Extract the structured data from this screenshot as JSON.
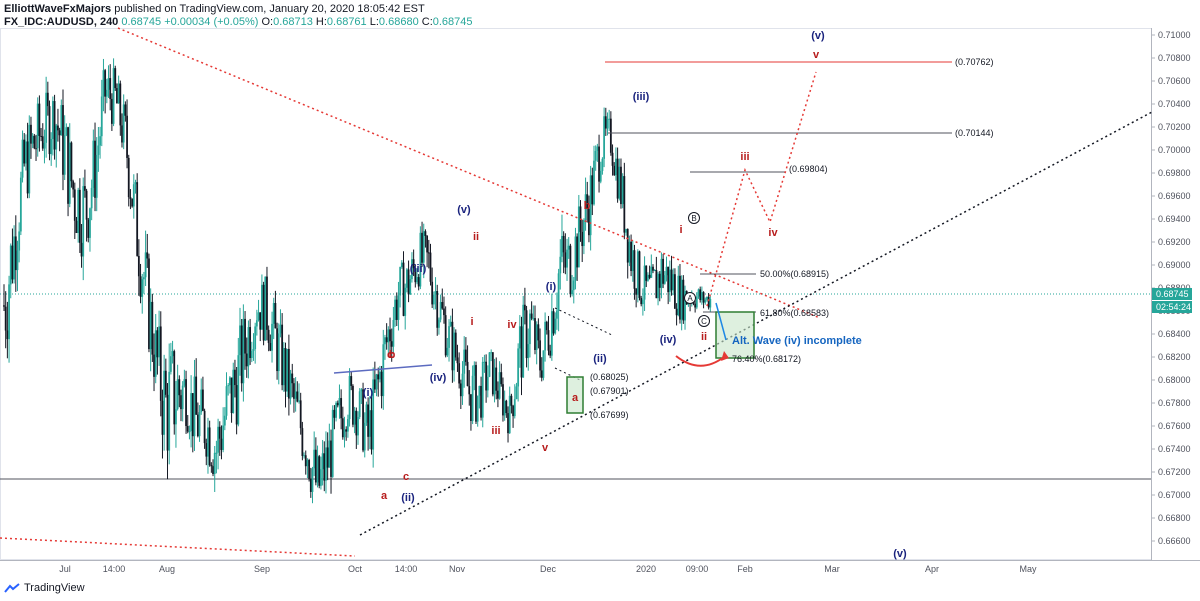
{
  "header": {
    "author": "ElliottWaveFxMajors",
    "published_text": "published on TradingView.com, January 20, 2020 18:05:42 EST",
    "symbol": "FX_IDC:AUDUSD, 240",
    "last": "0.68745",
    "change": "+0.00034 (+0.05%)",
    "o_label": "O:",
    "o_val": "0.68713",
    "h_label": "H:",
    "h_val": "0.68761",
    "l_label": "L:",
    "l_val": "0.68680",
    "c_label": "C:",
    "c_val": "0.68745"
  },
  "footer": {
    "brand": "TradingView"
  },
  "colors": {
    "up": "#26a69a",
    "down": "#131722",
    "wave_blue": "#1a237e",
    "wave_red": "#b71c1c",
    "trend_red": "#e53935",
    "box_green": "#2e7d32"
  },
  "chart_data": {
    "type": "candlestick",
    "title": "",
    "xlabel": "",
    "ylabel": "",
    "ylim": [
      0.665,
      0.711
    ],
    "y_ticks": [
      "0.71000",
      "0.70800",
      "0.70600",
      "0.70400",
      "0.70200",
      "0.70000",
      "0.69800",
      "0.69600",
      "0.69400",
      "0.69200",
      "0.69000",
      "0.68800",
      "0.68600",
      "0.68400",
      "0.68200",
      "0.68000",
      "0.67800",
      "0.67600",
      "0.67400",
      "0.67200",
      "0.67000",
      "0.66800",
      "0.66600"
    ],
    "x_ticks": [
      "Jul",
      "14:00",
      "Aug",
      "Sep",
      "Oct",
      "14:00",
      "Nov",
      "Dec",
      "2020",
      "09:00",
      "Feb",
      "Mar",
      "Apr",
      "May"
    ],
    "price_badge": "0.68745",
    "countdown_badge": "02:54:24",
    "price_path": [
      [
        0.68,
        0.693
      ],
      [
        0.688,
        0.696
      ],
      [
        0.695,
        0.702
      ],
      [
        0.697,
        0.704
      ],
      [
        0.699,
        0.705
      ],
      [
        0.7,
        0.706
      ],
      [
        0.696,
        0.704
      ],
      [
        0.692,
        0.7
      ],
      [
        0.69,
        0.699
      ],
      [
        0.695,
        0.702
      ],
      [
        0.702,
        0.708
      ],
      [
        0.702,
        0.707
      ],
      [
        0.698,
        0.704
      ],
      [
        0.69,
        0.698
      ],
      [
        0.684,
        0.692
      ],
      [
        0.678,
        0.686
      ],
      [
        0.672,
        0.683
      ],
      [
        0.674,
        0.684
      ],
      [
        0.676,
        0.682
      ],
      [
        0.673,
        0.68
      ],
      [
        0.673,
        0.679
      ],
      [
        0.67,
        0.678
      ],
      [
        0.674,
        0.681
      ],
      [
        0.676,
        0.684
      ],
      [
        0.68,
        0.687
      ],
      [
        0.684,
        0.689
      ],
      [
        0.683,
        0.689
      ],
      [
        0.68,
        0.686
      ],
      [
        0.677,
        0.683
      ],
      [
        0.674,
        0.68
      ],
      [
        0.671,
        0.677
      ],
      [
        0.667,
        0.674
      ],
      [
        0.67,
        0.676
      ],
      [
        0.673,
        0.679
      ],
      [
        0.676,
        0.681
      ],
      [
        0.675,
        0.68
      ],
      [
        0.672,
        0.678
      ],
      [
        0.676,
        0.683
      ],
      [
        0.681,
        0.687
      ],
      [
        0.685,
        0.69
      ],
      [
        0.686,
        0.691
      ],
      [
        0.688,
        0.693
      ],
      [
        0.687,
        0.693
      ],
      [
        0.684,
        0.689
      ],
      [
        0.681,
        0.686
      ],
      [
        0.679,
        0.684
      ],
      [
        0.676,
        0.682
      ],
      [
        0.676,
        0.681
      ],
      [
        0.679,
        0.683
      ],
      [
        0.677,
        0.681
      ],
      [
        0.675,
        0.679
      ],
      [
        0.679,
        0.686
      ],
      [
        0.682,
        0.688
      ],
      [
        0.679,
        0.684
      ],
      [
        0.682,
        0.688
      ],
      [
        0.686,
        0.694
      ],
      [
        0.687,
        0.693
      ],
      [
        0.69,
        0.696
      ],
      [
        0.693,
        0.699
      ],
      [
        0.698,
        0.703
      ],
      [
        0.699,
        0.703
      ],
      [
        0.694,
        0.699
      ],
      [
        0.688,
        0.694
      ],
      [
        0.686,
        0.69
      ],
      [
        0.685,
        0.69
      ],
      [
        0.687,
        0.692
      ],
      [
        0.686,
        0.691
      ],
      [
        0.685,
        0.689
      ],
      [
        0.686,
        0.689
      ],
      [
        0.686,
        0.688
      ]
    ],
    "levels": [
      {
        "label": "(0.70762)",
        "value": 0.70762,
        "color": "#e53935"
      },
      {
        "label": "(0.70144)",
        "value": 0.70144,
        "color": "#131722"
      },
      {
        "label": "(0.69804)",
        "value": 0.69804,
        "color": "#131722"
      },
      {
        "label": "50.00%(0.68915)",
        "value": 0.68915,
        "color": "#131722"
      },
      {
        "label": "61.80%(0.68583)",
        "value": 0.68583,
        "color": "#131722"
      },
      {
        "label": "76.40%(0.68172)",
        "value": 0.68172,
        "color": "#131722"
      },
      {
        "label": "(0.68025)",
        "value": 0.68025,
        "color": "#131722"
      },
      {
        "label": "(0.67901)",
        "value": 0.67901,
        "color": "#e53935"
      },
      {
        "label": "(0.67699)",
        "value": 0.67699,
        "color": "#131722"
      }
    ],
    "annotation": "Alt. Wave (iv) incomplete",
    "wave_labels": [
      {
        "text": "(v)",
        "color": "blue"
      },
      {
        "text": "v",
        "color": "red"
      },
      {
        "text": "(iii)",
        "color": "blue"
      },
      {
        "text": "iii",
        "color": "red"
      },
      {
        "text": "iv",
        "color": "red"
      },
      {
        "text": "B",
        "color": "circle"
      },
      {
        "text": "i",
        "color": "red"
      },
      {
        "text": "b",
        "color": "red"
      },
      {
        "text": "(v)",
        "color": "blue"
      },
      {
        "text": "ii",
        "color": "red"
      },
      {
        "text": "A",
        "color": "circle"
      },
      {
        "text": "C",
        "color": "circle"
      },
      {
        "text": "ii",
        "color": "red"
      },
      {
        "text": "(iv)",
        "color": "blue"
      },
      {
        "text": "(iii)",
        "color": "blue"
      },
      {
        "text": "i",
        "color": "red"
      },
      {
        "text": "iv",
        "color": "red"
      },
      {
        "text": "(i)",
        "color": "blue"
      },
      {
        "text": "c",
        "color": "red"
      },
      {
        "text": "(ii)",
        "color": "blue"
      },
      {
        "text": "b",
        "color": "red"
      },
      {
        "text": "(iv)",
        "color": "blue"
      },
      {
        "text": "a",
        "color": "red"
      },
      {
        "text": "(i)",
        "color": "blue"
      },
      {
        "text": "iii",
        "color": "red"
      },
      {
        "text": "v",
        "color": "red"
      },
      {
        "text": "c",
        "color": "red"
      },
      {
        "text": "a",
        "color": "red"
      },
      {
        "text": "(ii)",
        "color": "blue"
      },
      {
        "text": "(v)",
        "color": "blue"
      }
    ]
  }
}
